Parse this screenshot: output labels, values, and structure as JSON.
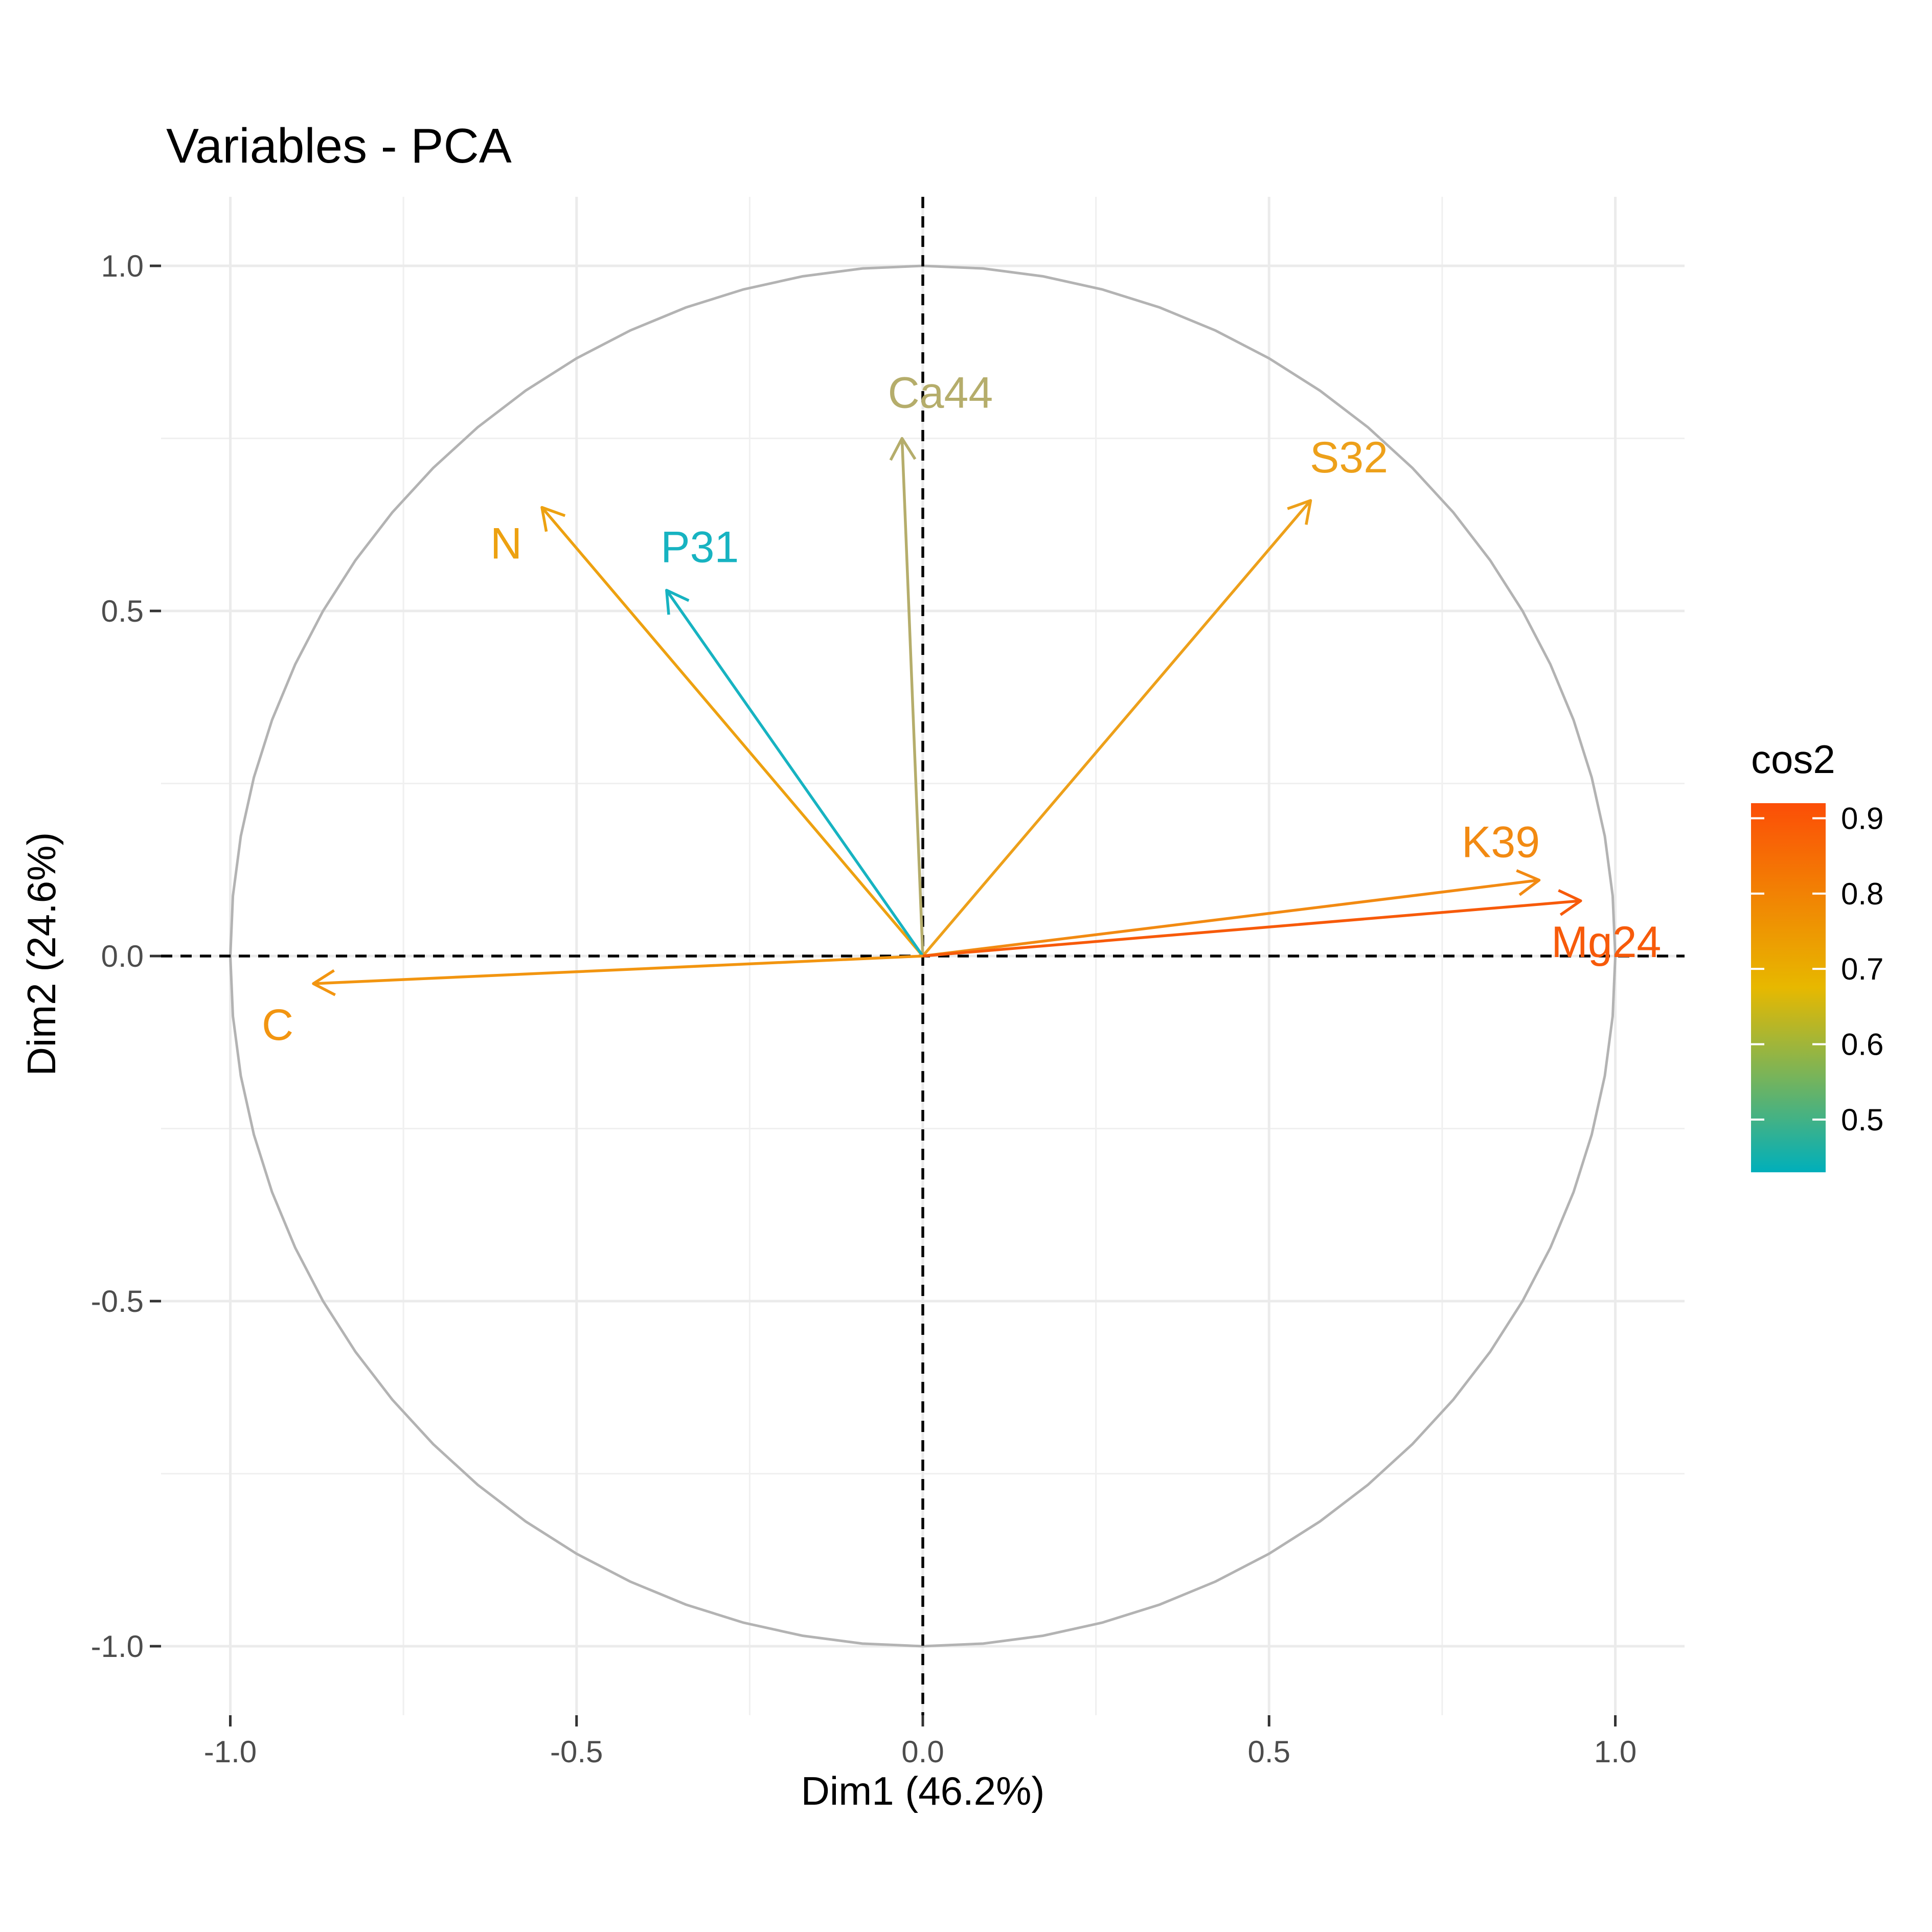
{
  "chart_data": {
    "type": "scatter",
    "title": "Variables - PCA",
    "xlabel": "Dim1 (46.2%)",
    "ylabel": "Dim2 (24.6%)",
    "xlim": [
      -1.1,
      1.1
    ],
    "ylim": [
      -1.1,
      1.1
    ],
    "xticks": [
      -1.0,
      -0.5,
      0.0,
      0.5,
      1.0
    ],
    "yticks": [
      -1.0,
      -0.5,
      0.0,
      0.5,
      1.0
    ],
    "xtick_labels": [
      "-1.0",
      "-0.5",
      "0.0",
      "0.5",
      "1.0"
    ],
    "ytick_labels": [
      "-1.0",
      "-0.5",
      "0.0",
      "0.5",
      "1.0"
    ],
    "grid": true,
    "unit_circle": true,
    "reference_lines": [
      0,
      0
    ],
    "variables": [
      {
        "label": "Ca44",
        "x": -0.03,
        "y": 0.75,
        "cos2": 0.57,
        "color": "#b5ad6b"
      },
      {
        "label": "S32",
        "x": 0.56,
        "y": 0.66,
        "cos2": 0.75,
        "color": "#eda01a"
      },
      {
        "label": "N",
        "x": -0.55,
        "y": 0.65,
        "cos2": 0.74,
        "color": "#eda110"
      },
      {
        "label": "P31",
        "x": -0.37,
        "y": 0.53,
        "cos2": 0.43,
        "color": "#17b3c1"
      },
      {
        "label": "K39",
        "x": 0.89,
        "y": 0.11,
        "cos2": 0.81,
        "color": "#f28a12"
      },
      {
        "label": "Mg24",
        "x": 0.95,
        "y": 0.08,
        "cos2": 0.91,
        "color": "#f75a0a"
      },
      {
        "label": "C",
        "x": -0.88,
        "y": -0.04,
        "cos2": 0.77,
        "color": "#f29510"
      }
    ],
    "legend": {
      "title": "cos2",
      "position": "right",
      "min": 0.43,
      "max": 0.92,
      "ticks": [
        0.5,
        0.6,
        0.7,
        0.8,
        0.9
      ],
      "tick_labels": [
        "0.5",
        "0.6",
        "0.7",
        "0.8",
        "0.9"
      ],
      "gradient": [
        "#00afbb",
        "#e7b800",
        "#fc4e07"
      ]
    }
  }
}
